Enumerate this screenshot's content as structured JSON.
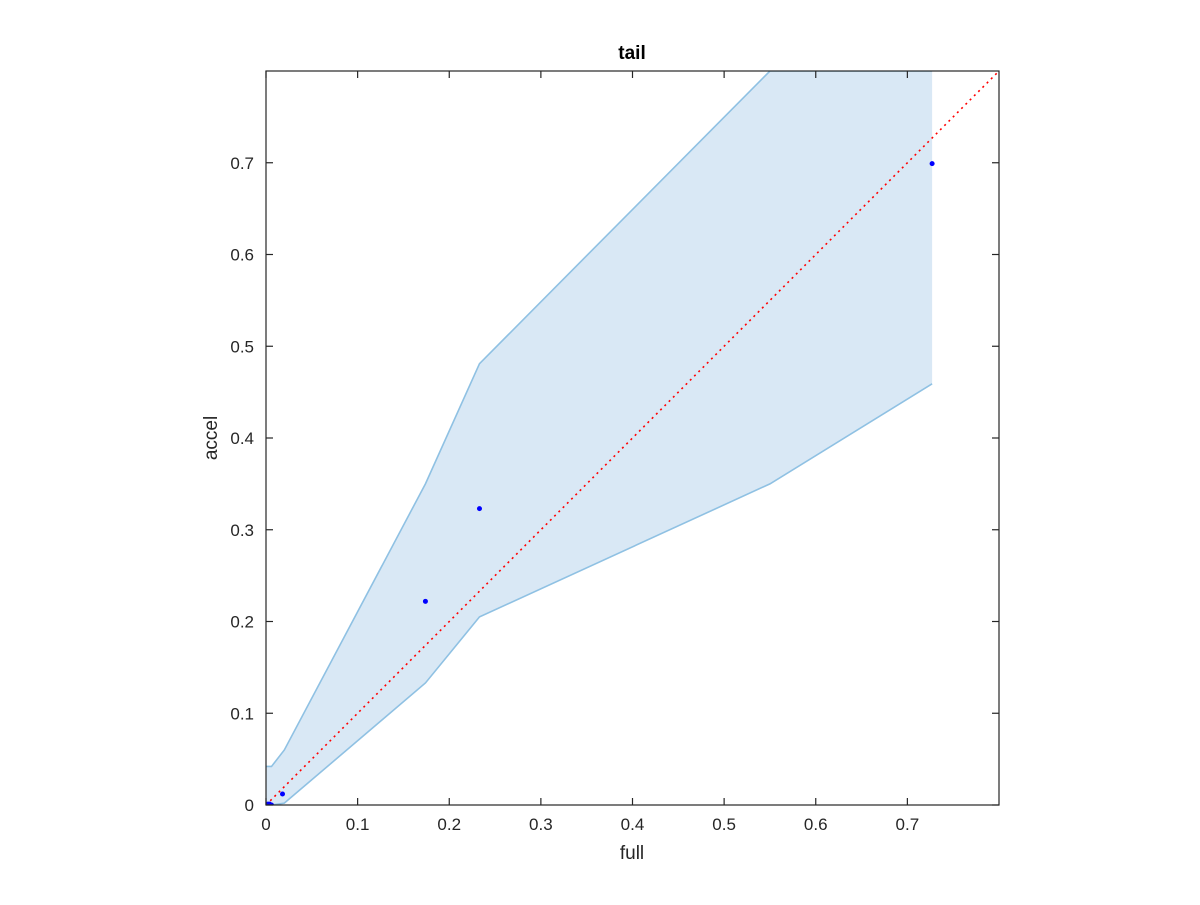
{
  "chart_data": {
    "type": "scatter",
    "title": "tail",
    "xlabel": "full",
    "ylabel": "accel",
    "xlim": [
      0,
      0.8
    ],
    "ylim": [
      0,
      0.8
    ],
    "x_ticks": [
      0,
      0.1,
      0.2,
      0.3,
      0.4,
      0.5,
      0.6,
      0.7
    ],
    "y_ticks": [
      0,
      0.1,
      0.2,
      0.3,
      0.4,
      0.5,
      0.6,
      0.7
    ],
    "x_tick_labels": [
      "0",
      "0.1",
      "0.2",
      "0.3",
      "0.4",
      "0.5",
      "0.6",
      "0.7"
    ],
    "y_tick_labels": [
      "0",
      "0.1",
      "0.2",
      "0.3",
      "0.4",
      "0.5",
      "0.6",
      "0.7"
    ],
    "grid": false,
    "points": {
      "x": [
        0.0,
        0.002,
        0.004,
        0.006,
        0.018,
        0.174,
        0.233,
        0.727
      ],
      "y": [
        0.0,
        0.001,
        0.001,
        0.0,
        0.012,
        0.222,
        0.323,
        0.699
      ],
      "color": "#0000ff"
    },
    "band": {
      "x": [
        0.0,
        0.006,
        0.02,
        0.174,
        0.233,
        0.55,
        0.727
      ],
      "upper": [
        0.042,
        0.042,
        0.06,
        0.35,
        0.481,
        0.8,
        0.8
      ],
      "lower": [
        0.0,
        0.0,
        0.002,
        0.133,
        0.205,
        0.35,
        0.459
      ],
      "fill_color": "#d9e8f5",
      "edge_color": "#8fc1e3"
    },
    "reference_line": {
      "x": [
        0,
        0.8
      ],
      "y": [
        0,
        0.8
      ],
      "color": "#ff0000",
      "style": "dotted"
    }
  }
}
